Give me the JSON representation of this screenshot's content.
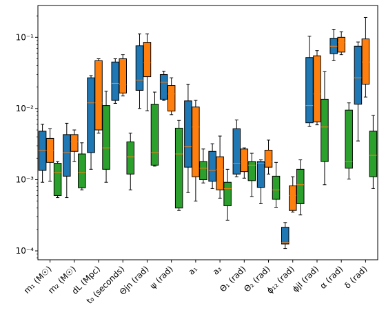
{
  "chart_data": {
    "type": "box",
    "y_scale": "log",
    "ylim": [
      7.5e-05,
      0.28
    ],
    "y_ticks": [
      {
        "value": 0.0001,
        "label": "10⁻⁴"
      },
      {
        "value": 0.001,
        "label": "10⁻³"
      },
      {
        "value": 0.01,
        "label": "10⁻²"
      },
      {
        "value": 0.1,
        "label": "10⁻¹"
      }
    ],
    "grid": false,
    "legend": "none",
    "categories": [
      "m₁ (M☉)",
      "m₂ (M☉)",
      "dL (Mpc)",
      "t₀ (seconds)",
      "Θjn (rad)",
      "ψ (rad)",
      "a₁",
      "a₂",
      "Θ₁ (rad)",
      "Θ₂ (rad)",
      "ϕ₁₂ (rad)",
      "ϕjl (rad)",
      "α (rad)",
      "δ (rad)"
    ],
    "series": [
      {
        "color": "#1f77b4",
        "boxes": [
          {
            "whislo": 0.00092,
            "q1": 0.00135,
            "median": 0.0026,
            "q3": 0.0048,
            "whishi": 0.006
          },
          {
            "whislo": 0.00056,
            "q1": 0.00112,
            "median": 0.0024,
            "q3": 0.0043,
            "whishi": 0.0062
          },
          {
            "whislo": 0.0014,
            "q1": 0.0024,
            "median": 0.012,
            "q3": 0.027,
            "whishi": 0.029
          },
          {
            "whislo": 0.0118,
            "q1": 0.013,
            "median": 0.0225,
            "q3": 0.045,
            "whishi": 0.05
          },
          {
            "whislo": 0.01,
            "q1": 0.018,
            "median": 0.025,
            "q3": 0.076,
            "whishi": 0.112
          },
          {
            "whislo": 0.013,
            "q1": 0.0135,
            "median": 0.0235,
            "q3": 0.03,
            "whishi": 0.0335
          },
          {
            "whislo": 0.00066,
            "q1": 0.0015,
            "median": 0.0029,
            "q3": 0.0128,
            "whishi": 0.022
          },
          {
            "whislo": 0.00075,
            "q1": 0.00095,
            "median": 0.00135,
            "q3": 0.0025,
            "whishi": 0.0032
          },
          {
            "whislo": 0.0011,
            "q1": 0.0012,
            "median": 0.0017,
            "q3": 0.0052,
            "whishi": 0.0069
          },
          {
            "whislo": 0.00046,
            "q1": 0.00078,
            "median": 0.0017,
            "q3": 0.0018,
            "whishi": 0.0019
          },
          {
            "whislo": 0.000108,
            "q1": 0.000125,
            "median": 0.000132,
            "q3": 0.000215,
            "whishi": 0.00025
          },
          {
            "whislo": 0.0056,
            "q1": 0.0063,
            "median": 0.011,
            "q3": 0.052,
            "whishi": 0.104
          },
          {
            "whislo": 0.047,
            "q1": 0.059,
            "median": 0.075,
            "q3": 0.097,
            "whishi": 0.13
          },
          {
            "whislo": 0.0035,
            "q1": 0.0115,
            "median": 0.027,
            "q3": 0.075,
            "whishi": 0.086
          }
        ]
      },
      {
        "color": "#ff7f0e",
        "boxes": [
          {
            "whislo": 0.00095,
            "q1": 0.00175,
            "median": 0.0026,
            "q3": 0.0038,
            "whishi": 0.0052
          },
          {
            "whislo": 0.0018,
            "q1": 0.0025,
            "median": 0.0034,
            "q3": 0.0043,
            "whishi": 0.005
          },
          {
            "whislo": 0.0045,
            "q1": 0.005,
            "median": 0.012,
            "q3": 0.047,
            "whishi": 0.05
          },
          {
            "whislo": 0.015,
            "q1": 0.0165,
            "median": 0.022,
            "q3": 0.05,
            "whishi": 0.057
          },
          {
            "whislo": 0.0093,
            "q1": 0.028,
            "median": 0.044,
            "q3": 0.085,
            "whishi": 0.112
          },
          {
            "whislo": 0.0082,
            "q1": 0.0092,
            "median": 0.016,
            "q3": 0.021,
            "whishi": 0.027
          },
          {
            "whislo": 0.0005,
            "q1": 0.0011,
            "median": 0.0055,
            "q3": 0.0105,
            "whishi": 0.013
          },
          {
            "whislo": 0.00055,
            "q1": 0.00072,
            "median": 0.0014,
            "q3": 0.0021,
            "whishi": 0.0041
          },
          {
            "whislo": 0.00105,
            "q1": 0.0013,
            "median": 0.0018,
            "q3": 0.0027,
            "whishi": 0.0028
          },
          {
            "whislo": 0.0012,
            "q1": 0.0015,
            "median": 0.0018,
            "q3": 0.0026,
            "whishi": 0.0036
          },
          {
            "whislo": 0.00035,
            "q1": 0.00037,
            "median": 0.0006,
            "q3": 0.00082,
            "whishi": 0.0011
          },
          {
            "whislo": 0.0059,
            "q1": 0.0065,
            "median": 0.016,
            "q3": 0.055,
            "whishi": 0.065
          },
          {
            "whislo": 0.057,
            "q1": 0.062,
            "median": 0.085,
            "q3": 0.1,
            "whishi": 0.12
          },
          {
            "whislo": 0.0145,
            "q1": 0.022,
            "median": 0.045,
            "q3": 0.095,
            "whishi": 0.19
          }
        ]
      },
      {
        "color": "#2ca02c",
        "boxes": [
          {
            "whislo": 0.00056,
            "q1": 0.0006,
            "median": 0.00125,
            "q3": 0.0017,
            "whishi": 0.0018
          },
          {
            "whislo": 0.00072,
            "q1": 0.00077,
            "median": 0.00125,
            "q3": 0.0023,
            "whishi": 0.0033
          },
          {
            "whislo": 0.00092,
            "q1": 0.0014,
            "median": 0.0028,
            "q3": 0.011,
            "whishi": 0.0175
          },
          {
            "whislo": 0.00072,
            "q1": 0.0012,
            "median": 0.0021,
            "q3": 0.0034,
            "whishi": 0.0045
          },
          {
            "whislo": 0.00155,
            "q1": 0.0016,
            "median": 0.0024,
            "q3": 0.0115,
            "whishi": 0.017
          },
          {
            "whislo": 0.00037,
            "q1": 0.0004,
            "median": 0.0023,
            "q3": 0.0053,
            "whishi": 0.0068
          },
          {
            "whislo": 0.0009,
            "q1": 0.001,
            "median": 0.00145,
            "q3": 0.0018,
            "whishi": 0.0027
          },
          {
            "whislo": 0.00027,
            "q1": 0.00043,
            "median": 0.00075,
            "q3": 0.00092,
            "whishi": 0.0014
          },
          {
            "whislo": 0.00058,
            "q1": 0.00097,
            "median": 0.0016,
            "q3": 0.0018,
            "whishi": 0.00235
          },
          {
            "whislo": 0.00041,
            "q1": 0.00053,
            "median": 0.00072,
            "q3": 0.00112,
            "whishi": 0.00175
          },
          {
            "whislo": 0.00032,
            "q1": 0.00046,
            "median": 0.00085,
            "q3": 0.0014,
            "whishi": 0.0019
          },
          {
            "whislo": 0.00085,
            "q1": 0.0018,
            "median": 0.0055,
            "q3": 0.0135,
            "whishi": 0.033
          },
          {
            "whislo": 0.00102,
            "q1": 0.00145,
            "median": 0.0018,
            "q3": 0.0095,
            "whishi": 0.012
          },
          {
            "whislo": 0.00075,
            "q1": 0.0011,
            "median": 0.0022,
            "q3": 0.0048,
            "whishi": 0.008
          }
        ]
      }
    ]
  }
}
